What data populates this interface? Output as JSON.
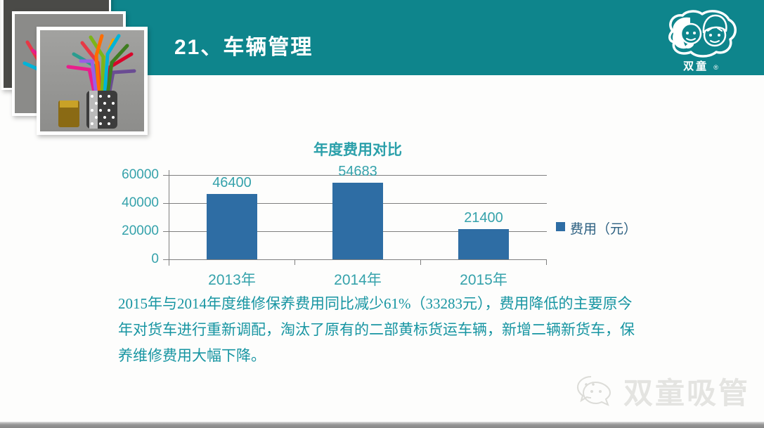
{
  "slide": {
    "title": "21、车辆管理",
    "brand": {
      "name": "双童",
      "reg_mark": "®"
    },
    "watermark": {
      "text": "双童吸管"
    },
    "paragraph_lines": [
      "2015年与2014年度维修保养费用同比减少61%（33283元），费用降低的主要原今",
      "年对货车进行重新调配，淘汰了原有的二部黄标货运车辆，新增二辆新货车，保",
      "养维修费用大幅下降。"
    ],
    "colors": {
      "band_teal": "#0e858c",
      "bar_blue": "#2e6da4",
      "chart_text_teal": "#35a2ab",
      "chart_title_teal": "#2ba0aa",
      "paragraph_teal": "#1795a2",
      "legend_text": "#2b5f80",
      "gridline_gray": "#7f7f7f",
      "watermark_gray": "#e4e4e1"
    }
  },
  "chart_data": {
    "type": "bar",
    "title": "年度费用对比",
    "categories": [
      "2013年",
      "2014年",
      "2015年"
    ],
    "series": [
      {
        "name": "费用（元）",
        "values": [
          46400,
          54683,
          21400
        ]
      }
    ],
    "data_labels": [
      "46400",
      "54683",
      "21400"
    ],
    "xlabel": "",
    "ylabel": "",
    "ylim": [
      0,
      60000
    ],
    "yticks": [
      0,
      20000,
      40000,
      60000
    ],
    "grid": true,
    "legend_position": "right"
  }
}
